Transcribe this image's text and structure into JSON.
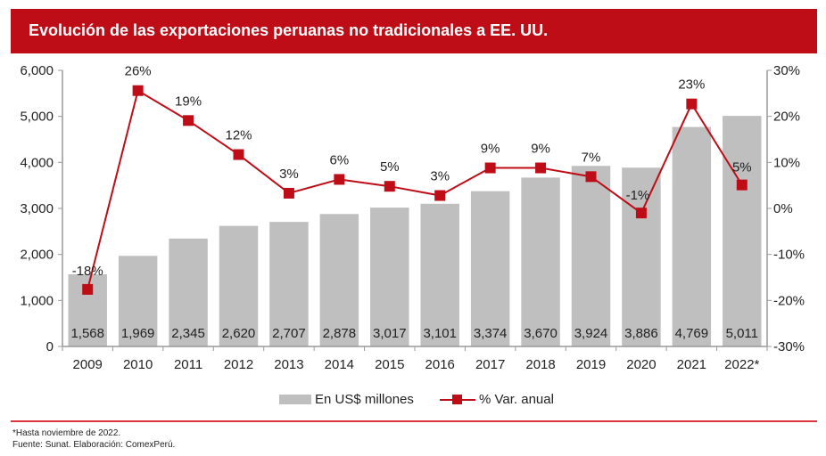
{
  "header": {
    "title": "Evolución de las exportaciones peruanas no tradicionales a EE. UU."
  },
  "chart_data": {
    "type": "bar",
    "title": "Evolución de las exportaciones peruanas no tradicionales a EE. UU.",
    "categories": [
      "2009",
      "2010",
      "2011",
      "2012",
      "2013",
      "2014",
      "2015",
      "2016",
      "2017",
      "2018",
      "2019",
      "2020",
      "2021",
      "2022*"
    ],
    "series": [
      {
        "name": "En US$ millones",
        "type": "bar",
        "axis": "left",
        "color": "#bfbfbf",
        "values": [
          1568,
          1969,
          2345,
          2620,
          2707,
          2878,
          3017,
          3101,
          3374,
          3670,
          3924,
          3886,
          4769,
          5011
        ],
        "labels": [
          "1,568",
          "1,969",
          "2,345",
          "2,620",
          "2,707",
          "2,878",
          "3,017",
          "3,101",
          "3,374",
          "3,670",
          "3,924",
          "3,886",
          "4,769",
          "5,011"
        ]
      },
      {
        "name": "% Var. anual",
        "type": "line",
        "axis": "right",
        "color": "#bf0d17",
        "marker": "square",
        "values": [
          -17.6,
          25.6,
          19.1,
          11.7,
          3.3,
          6.3,
          4.8,
          2.8,
          8.8,
          8.8,
          6.9,
          -1.0,
          22.7,
          5.1
        ],
        "labels": [
          "-18%",
          "26%",
          "19%",
          "12%",
          "3%",
          "6%",
          "5%",
          "3%",
          "9%",
          "9%",
          "7%",
          "-1%",
          "23%",
          "5%"
        ]
      }
    ],
    "left_axis": {
      "ylim": [
        0,
        6000
      ],
      "ticks": [
        "0",
        "1,000",
        "2,000",
        "3,000",
        "4,000",
        "5,000",
        "6,000"
      ],
      "tick_values": [
        0,
        1000,
        2000,
        3000,
        4000,
        5000,
        6000
      ]
    },
    "right_axis": {
      "ylim": [
        -30,
        30
      ],
      "ticks": [
        "-30%",
        "-20%",
        "-10%",
        "0%",
        "10%",
        "20%",
        "30%"
      ],
      "tick_values": [
        -30,
        -20,
        -10,
        0,
        10,
        20,
        30
      ]
    },
    "xlabel": "",
    "ylabel": "",
    "grid": false,
    "legend_position": "bottom-center"
  },
  "legend": {
    "bar_label": "En US$ millones",
    "line_label": "% Var. anual"
  },
  "footnotes": {
    "note": "*Hasta noviembre de 2022.",
    "source": "Fuente: Sunat. Elaboración: ComexPerú."
  }
}
